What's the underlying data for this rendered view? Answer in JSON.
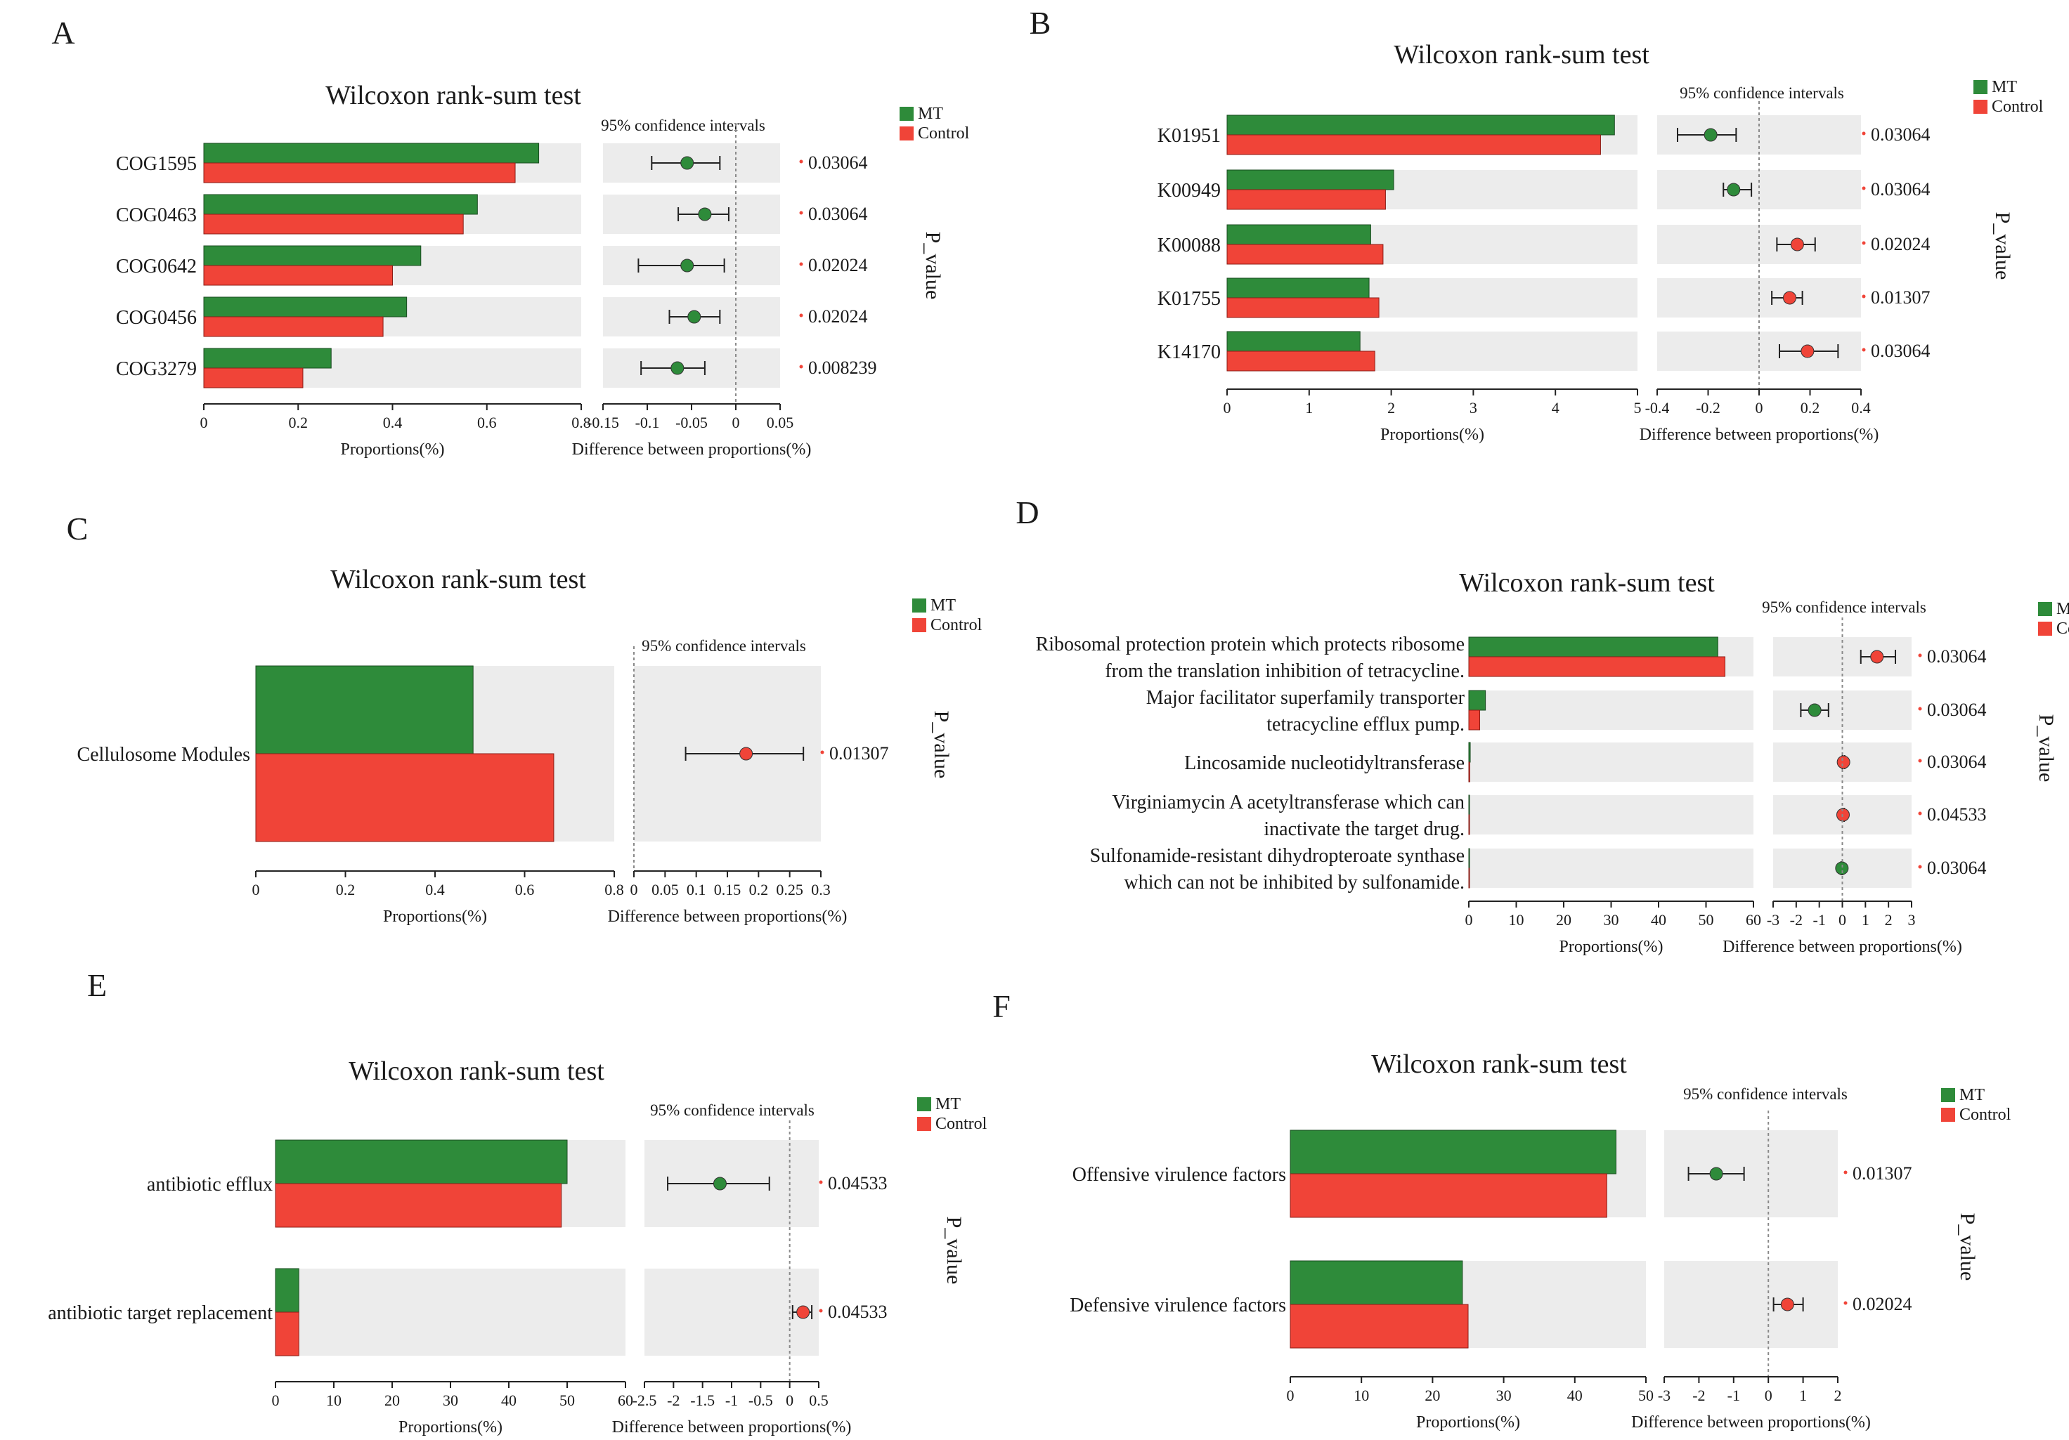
{
  "figure_title": "Wilcoxon rank-sum test",
  "legend": {
    "mt_label": "MT",
    "control_label": "Control"
  },
  "colors": {
    "mt": "#2e8b3a",
    "control": "#f04438",
    "band": "#ececec",
    "dashed": "#8a8a8a"
  },
  "texts": {
    "ci_title": "95% confidence intervals",
    "proportions_axis": "Proportions(%)",
    "difference_axis": "Difference between proportions(%)",
    "p_value_title": "P_value"
  },
  "chart_data": [
    {
      "panel": "A",
      "type": "bar",
      "title": "Wilcoxon rank-sum test",
      "categories": [
        "COG1595",
        "COG0463",
        "COG0642",
        "COG0456",
        "COG3279"
      ],
      "series": [
        {
          "name": "MT",
          "values": [
            0.71,
            0.58,
            0.46,
            0.43,
            0.27
          ]
        },
        {
          "name": "Control",
          "values": [
            0.66,
            0.55,
            0.4,
            0.38,
            0.21
          ]
        }
      ],
      "xlabel": "Proportions(%)",
      "xlim": [
        0,
        0.8
      ],
      "xticks": [
        "0",
        "0.2",
        "0.4",
        "0.6",
        "0.8"
      ],
      "difference": {
        "xlabel": "Difference between proportions(%)",
        "xlim": [
          -0.15,
          0.05
        ],
        "xticks": [
          "-0.15",
          "-0.1",
          "-0.05",
          "0",
          "0.05"
        ],
        "estimates": [
          -0.055,
          -0.035,
          -0.055,
          -0.047,
          -0.066
        ],
        "ci_low": [
          -0.095,
          -0.065,
          -0.11,
          -0.075,
          -0.107
        ],
        "ci_high": [
          -0.018,
          -0.008,
          -0.013,
          -0.018,
          -0.035
        ],
        "higher_in": [
          "MT",
          "MT",
          "MT",
          "MT",
          "MT"
        ]
      },
      "p_values": [
        "0.03064",
        "0.03064",
        "0.02024",
        "0.02024",
        "0.008239"
      ]
    },
    {
      "panel": "B",
      "type": "bar",
      "title": "Wilcoxon rank-sum test",
      "categories": [
        "K01951",
        "K00949",
        "K00088",
        "K01755",
        "K14170"
      ],
      "series": [
        {
          "name": "MT",
          "values": [
            4.72,
            2.03,
            1.75,
            1.73,
            1.62
          ]
        },
        {
          "name": "Control",
          "values": [
            4.55,
            1.93,
            1.9,
            1.85,
            1.8
          ]
        }
      ],
      "xlabel": "Proportions(%)",
      "xlim": [
        0,
        5
      ],
      "xticks": [
        "0",
        "1",
        "2",
        "3",
        "4",
        "5"
      ],
      "difference": {
        "xlabel": "Difference between proportions(%)",
        "xlim": [
          -0.4,
          0.4
        ],
        "xticks": [
          "-0.4",
          "-0.2",
          "0",
          "0.2",
          "0.4"
        ],
        "estimates": [
          -0.19,
          -0.1,
          0.15,
          0.12,
          0.19
        ],
        "ci_low": [
          -0.32,
          -0.14,
          0.07,
          0.05,
          0.08
        ],
        "ci_high": [
          -0.09,
          -0.03,
          0.22,
          0.17,
          0.31
        ],
        "higher_in": [
          "MT",
          "MT",
          "Control",
          "Control",
          "Control"
        ]
      },
      "p_values": [
        "0.03064",
        "0.03064",
        "0.02024",
        "0.01307",
        "0.03064"
      ]
    },
    {
      "panel": "C",
      "type": "bar",
      "title": "Wilcoxon rank-sum test",
      "categories": [
        "Cellulosome Modules"
      ],
      "series": [
        {
          "name": "MT",
          "values": [
            0.485
          ]
        },
        {
          "name": "Control",
          "values": [
            0.665
          ]
        }
      ],
      "xlabel": "Proportions(%)",
      "xlim": [
        0,
        0.8
      ],
      "xticks": [
        "0",
        "0.2",
        "0.4",
        "0.6",
        "0.8"
      ],
      "difference": {
        "xlabel": "Difference between proportions(%)",
        "xlim": [
          0,
          0.3
        ],
        "xticks": [
          "0",
          "0.05",
          "0.1",
          "0.15",
          "0.2",
          "0.25",
          "0.3"
        ],
        "estimates": [
          0.18
        ],
        "ci_low": [
          0.083
        ],
        "ci_high": [
          0.272
        ],
        "higher_in": [
          "Control"
        ]
      },
      "p_values": [
        "0.01307"
      ]
    },
    {
      "panel": "D",
      "type": "bar",
      "title": "Wilcoxon rank-sum test",
      "categories": [
        [
          "Ribosomal protection protein which protects ribosome",
          "from the translation inhibition of tetracycline."
        ],
        [
          "Major facilitator superfamily transporter",
          "tetracycline efflux pump."
        ],
        [
          "Lincosamide nucleotidyltransferase"
        ],
        [
          "Virginiamycin A acetyltransferase which can",
          "inactivate the target drug."
        ],
        [
          "Sulfonamide-resistant dihydropteroate synthase",
          "which can not be inhibited by sulfonamide."
        ]
      ],
      "series": [
        {
          "name": "MT",
          "values": [
            52.5,
            3.5,
            0.3,
            0.1,
            0.1
          ]
        },
        {
          "name": "Control",
          "values": [
            54.0,
            2.3,
            0.2,
            0.1,
            0.1
          ]
        }
      ],
      "xlabel": "Proportions(%)",
      "xlim": [
        0,
        60
      ],
      "xticks": [
        "0",
        "10",
        "20",
        "30",
        "40",
        "50",
        "60"
      ],
      "difference": {
        "xlabel": "Difference between proportions(%)",
        "xlim": [
          -3,
          3
        ],
        "xticks": [
          "-3",
          "-2",
          "-1",
          "0",
          "1",
          "2",
          "3"
        ],
        "estimates": [
          1.5,
          -1.2,
          0.05,
          0.03,
          -0.02
        ],
        "ci_low": [
          0.8,
          -1.8,
          0.0,
          0.0,
          -0.05
        ],
        "ci_high": [
          2.3,
          -0.6,
          0.1,
          0.08,
          0.01
        ],
        "higher_in": [
          "Control",
          "MT",
          "Control",
          "Control",
          "MT"
        ]
      },
      "p_values": [
        "0.03064",
        "0.03064",
        "0.03064",
        "0.04533",
        "0.03064"
      ]
    },
    {
      "panel": "E",
      "type": "bar",
      "title": "Wilcoxon rank-sum test",
      "categories": [
        "antibiotic efflux",
        "antibiotic target replacement"
      ],
      "series": [
        {
          "name": "MT",
          "values": [
            50,
            4
          ]
        },
        {
          "name": "Control",
          "values": [
            49,
            4
          ]
        }
      ],
      "xlabel": "Proportions(%)",
      "xlim": [
        0,
        60
      ],
      "xticks": [
        "0",
        "10",
        "20",
        "30",
        "40",
        "50",
        "60"
      ],
      "difference": {
        "xlabel": "Difference between proportions(%)",
        "xlim": [
          -2.5,
          0.5
        ],
        "xticks": [
          "-2.5",
          "-2",
          "-1.5",
          "-1",
          "-0.5",
          "0",
          "0.5"
        ],
        "estimates": [
          -1.2,
          0.23
        ],
        "ci_low": [
          -2.1,
          0.05
        ],
        "ci_high": [
          -0.35,
          0.38
        ],
        "higher_in": [
          "MT",
          "Control"
        ]
      },
      "p_values": [
        "0.04533",
        "0.04533"
      ]
    },
    {
      "panel": "F",
      "type": "bar",
      "title": "Wilcoxon rank-sum test",
      "categories": [
        "Offensive virulence factors",
        "Defensive virulence factors"
      ],
      "series": [
        {
          "name": "MT",
          "values": [
            45.8,
            24.2
          ]
        },
        {
          "name": "Control",
          "values": [
            44.5,
            25.0
          ]
        }
      ],
      "xlabel": "Proportions(%)",
      "xlim": [
        0,
        50
      ],
      "xticks": [
        "0",
        "10",
        "20",
        "30",
        "40",
        "50"
      ],
      "difference": {
        "xlabel": "Difference between proportions(%)",
        "xlim": [
          -3,
          2
        ],
        "xticks": [
          "-3",
          "-2",
          "-1",
          "0",
          "1",
          "2"
        ],
        "estimates": [
          -1.5,
          0.55
        ],
        "ci_low": [
          -2.3,
          0.15
        ],
        "ci_high": [
          -0.7,
          1.0
        ],
        "higher_in": [
          "MT",
          "Control"
        ]
      },
      "p_values": [
        "0.01307",
        "0.02024"
      ]
    }
  ]
}
